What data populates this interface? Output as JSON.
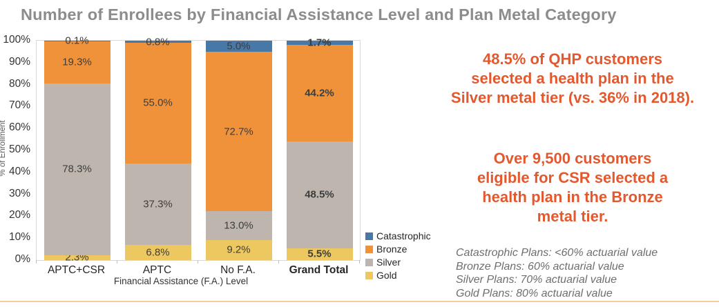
{
  "page": {
    "title": "Number of Enrollees by Financial Assistance Level and Plan Metal Category"
  },
  "chart_data": {
    "type": "bar",
    "stacked": true,
    "categories": [
      "APTC+CSR",
      "APTC",
      "No F.A.",
      "Grand Total"
    ],
    "series": [
      {
        "name": "Gold",
        "color": "#EDC75F",
        "values": [
          2.3,
          6.8,
          9.2,
          5.5
        ]
      },
      {
        "name": "Silver",
        "color": "#BDB5AE",
        "values": [
          78.3,
          37.3,
          13.0,
          48.5
        ]
      },
      {
        "name": "Bronze",
        "color": "#F0923A",
        "values": [
          19.3,
          55.0,
          72.7,
          44.2
        ]
      },
      {
        "name": "Catastrophic",
        "color": "#4878A8",
        "values": [
          0.1,
          0.8,
          5.0,
          1.7
        ]
      }
    ],
    "stack_order": "bottom-to-top",
    "data_label_format": "0.0%",
    "title": "Number of Enrollees by Financial Assistance Level and Plan Metal Category",
    "xlabel": "Financial Assistance (F.A.) Level",
    "ylabel": "% of Enrollment",
    "ylim": [
      0,
      100
    ],
    "ytick_step": 10,
    "ytick_suffix": "%",
    "grid": false,
    "legend": [
      "Catastrophic",
      "Bronze",
      "Silver",
      "Gold"
    ],
    "legend_position": "right-bottom",
    "emphasized_category": "Grand Total"
  },
  "callouts": [
    "48.5% of QHP customers\nselected a health plan in the\nSilver metal tier (vs. 36% in 2018).",
    "Over 9,500 customers\neligible for CSR selected a\nhealth plan in the Bronze\nmetal tier."
  ],
  "footnotes": [
    "Catastrophic Plans: <60% actuarial value",
    "Bronze Plans: 60% actuarial value",
    "Silver Plans: 70% actuarial value",
    "Gold Plans: 80% actuarial value"
  ],
  "colors": {
    "title_text": "#8C8C8C",
    "callout_text": "#E4582E",
    "footnote_text": "#6E6E6E",
    "data_label_text": "#3D3D3D",
    "axis_text": "#333333",
    "plot_border": "#D8D8D8",
    "bottom_divider": "#F5CBA4"
  }
}
